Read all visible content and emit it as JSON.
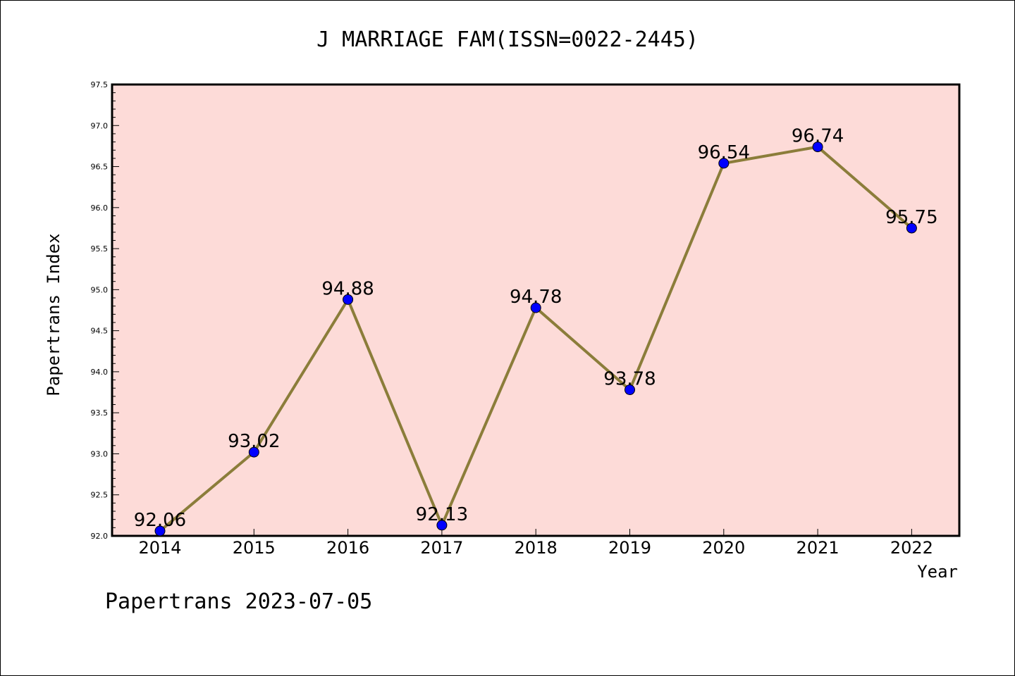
{
  "chart_data": {
    "type": "line",
    "title": "J MARRIAGE FAM(ISSN=0022-2445)",
    "xlabel": "Year",
    "ylabel": "Papertrans Index",
    "categories": [
      "2014",
      "2015",
      "2016",
      "2017",
      "2018",
      "2019",
      "2020",
      "2021",
      "2022"
    ],
    "series": [
      {
        "values": [
          92.06,
          93.02,
          94.88,
          92.13,
          94.78,
          93.78,
          96.54,
          96.74,
          95.75
        ],
        "data_labels": [
          "92.06",
          "93.02",
          "94.88",
          "92.13",
          "94.78",
          "93.78",
          "96.54",
          "96.74",
          "95.75"
        ]
      }
    ],
    "ylim": [
      92.0,
      97.5
    ],
    "yticks": [
      "92.0",
      "92.5",
      "93.0",
      "93.5",
      "94.0",
      "94.5",
      "95.0",
      "95.5",
      "96.0",
      "96.5",
      "97.0",
      "97.5"
    ],
    "grid": false,
    "colors": {
      "plot_background": "#fddbd8",
      "line": "#8b7d3a",
      "marker": "#0000ff"
    }
  },
  "footer": {
    "text": "Papertrans 2023-07-05"
  }
}
